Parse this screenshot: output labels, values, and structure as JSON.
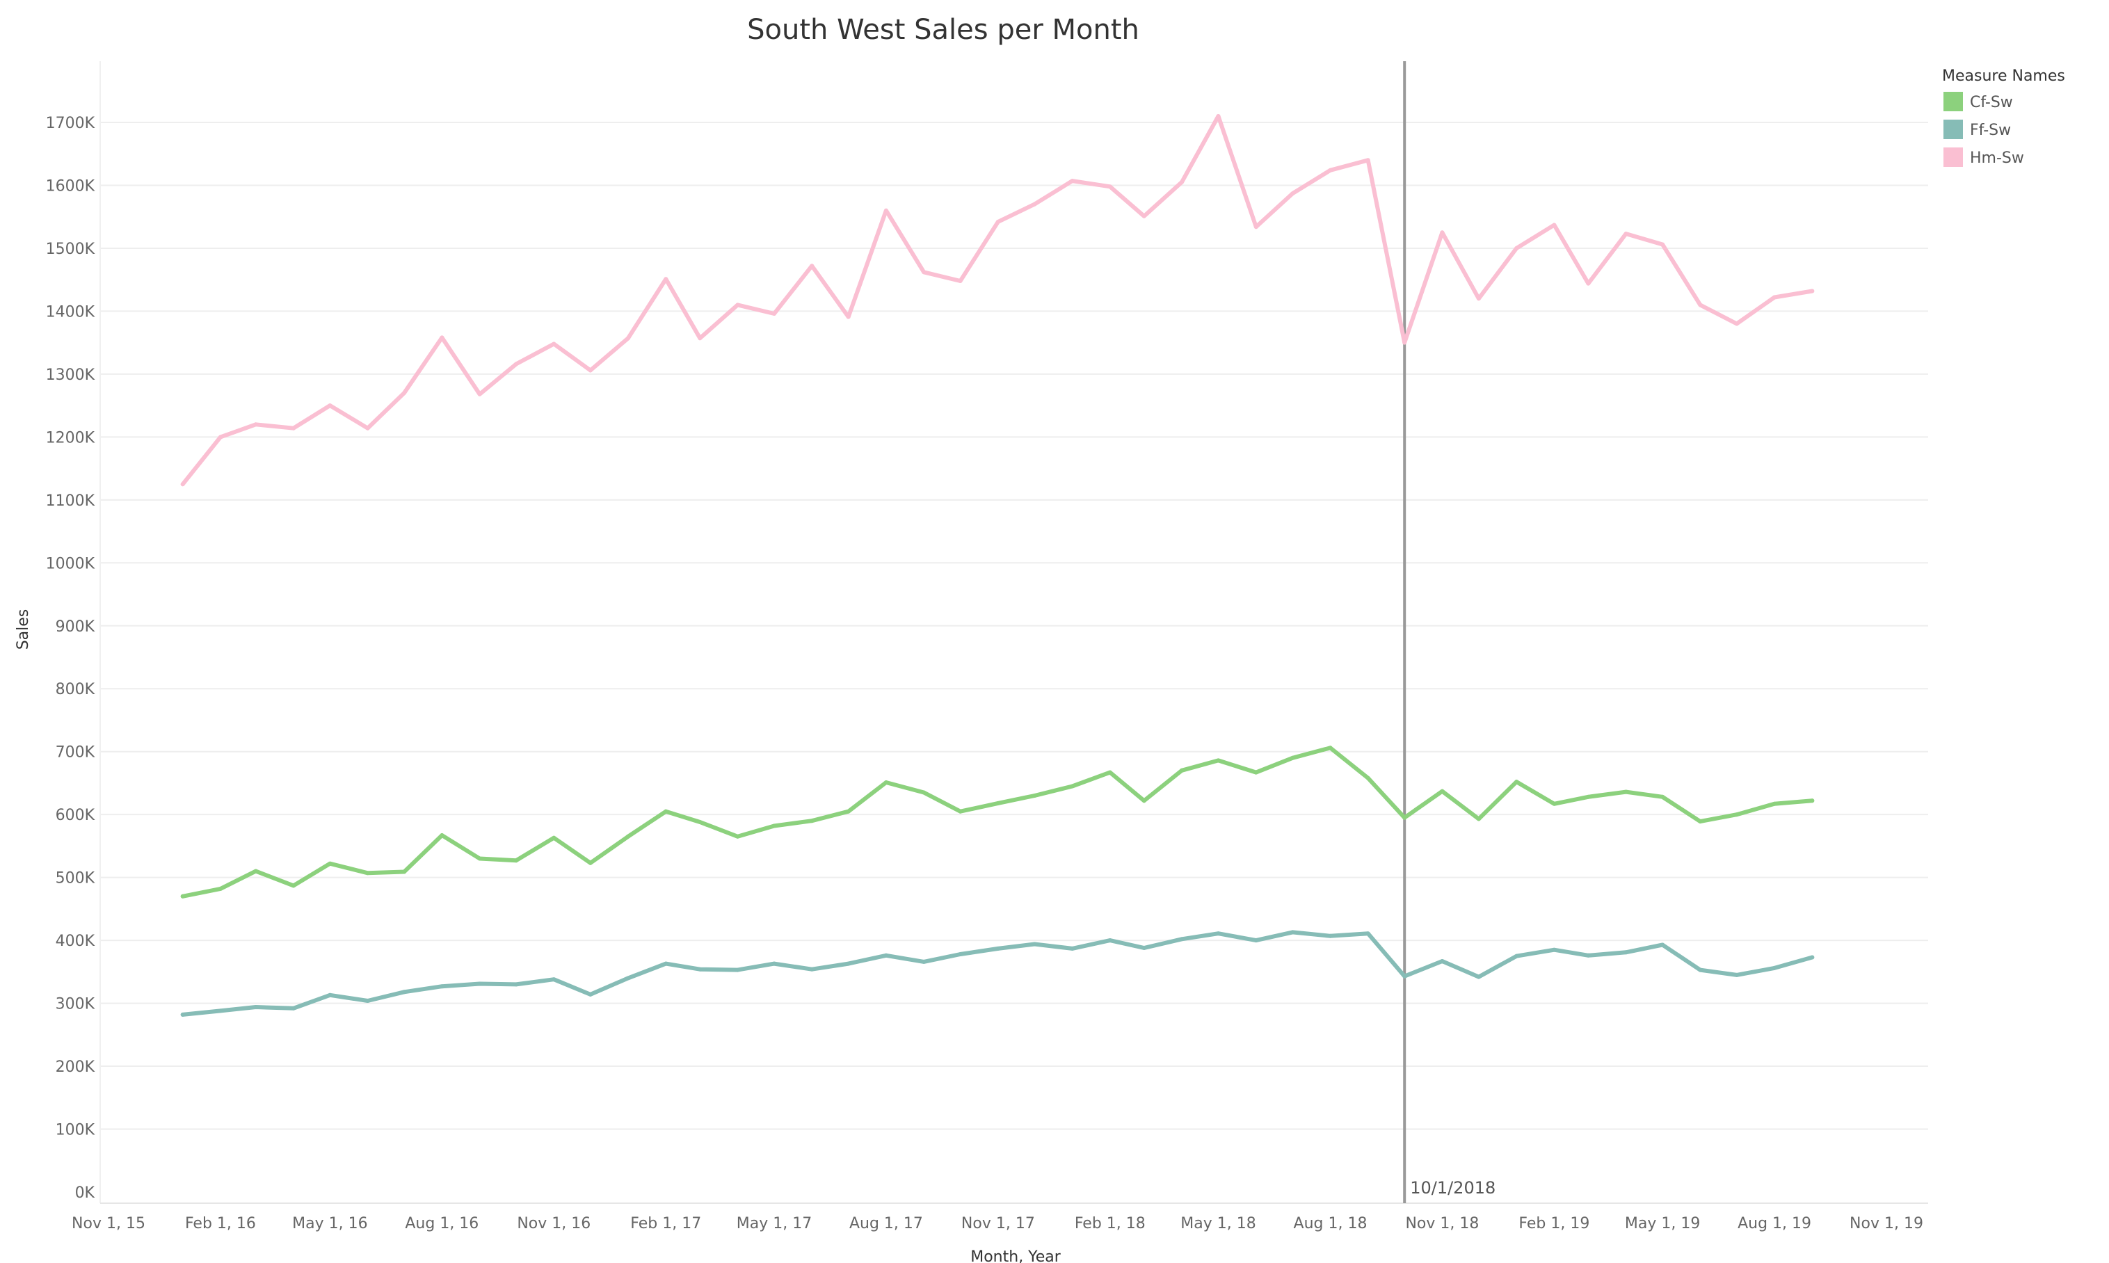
{
  "chart_data": {
    "type": "line",
    "title": "South West Sales per Month",
    "xlabel": "Month, Year",
    "ylabel": "Sales",
    "x_axis_type": "date",
    "xlim": [
      "2015-11-01",
      "2019-11-01"
    ],
    "ylim": [
      0,
      1800000
    ],
    "x_tick_labels": [
      "Nov 1, 15",
      "Feb 1, 16",
      "May 1, 16",
      "Aug 1, 16",
      "Nov 1, 16",
      "Feb 1, 17",
      "May 1, 17",
      "Aug 1, 17",
      "Nov 1, 17",
      "Feb 1, 18",
      "May 1, 18",
      "Aug 1, 18",
      "Nov 1, 18",
      "Feb 1, 19",
      "May 1, 19",
      "Aug 1, 19",
      "Nov 1, 19"
    ],
    "y_ticks": [
      0,
      100000,
      200000,
      300000,
      400000,
      500000,
      600000,
      700000,
      800000,
      900000,
      1000000,
      1100000,
      1200000,
      1300000,
      1400000,
      1500000,
      1600000,
      1700000
    ],
    "y_tick_labels": [
      "0K",
      "100K",
      "200K",
      "300K",
      "400K",
      "500K",
      "600K",
      "700K",
      "800K",
      "900K",
      "1000K",
      "1100K",
      "1200K",
      "1300K",
      "1400K",
      "1500K",
      "1600K",
      "1700K"
    ],
    "grid": "horizontal",
    "legend": {
      "title": "Measure Names",
      "position": "top-right"
    },
    "reference_line": {
      "x": "2018-10-01",
      "label": "10/1/2018",
      "color": "#999999"
    },
    "x": [
      "2016-01-01",
      "2016-02-01",
      "2016-03-01",
      "2016-04-01",
      "2016-05-01",
      "2016-06-01",
      "2016-07-01",
      "2016-08-01",
      "2016-09-01",
      "2016-10-01",
      "2016-11-01",
      "2016-12-01",
      "2017-01-01",
      "2017-02-01",
      "2017-03-01",
      "2017-04-01",
      "2017-05-01",
      "2017-06-01",
      "2017-07-01",
      "2017-08-01",
      "2017-09-01",
      "2017-10-01",
      "2017-11-01",
      "2017-12-01",
      "2018-01-01",
      "2018-02-01",
      "2018-03-01",
      "2018-04-01",
      "2018-05-01",
      "2018-06-01",
      "2018-07-01",
      "2018-08-01",
      "2018-09-01",
      "2018-10-01",
      "2018-11-01",
      "2018-12-01",
      "2019-01-01",
      "2019-02-01",
      "2019-03-01",
      "2019-04-01",
      "2019-05-01",
      "2019-06-01",
      "2019-07-01",
      "2019-08-01",
      "2019-09-01"
    ],
    "series": [
      {
        "name": "Cf-Sw",
        "color": "#8cd17d",
        "values": [
          470000,
          482000,
          510000,
          487000,
          522000,
          507000,
          509000,
          567000,
          530000,
          527000,
          563000,
          523000,
          565000,
          605000,
          588000,
          565000,
          582000,
          590000,
          605000,
          651000,
          635000,
          605000,
          618000,
          630000,
          645000,
          667000,
          622000,
          670000,
          686000,
          667000,
          690000,
          706000,
          658000,
          595000,
          637000,
          593000,
          652000,
          617000,
          628000,
          636000,
          628000,
          589000,
          600000,
          617000,
          622000
        ]
      },
      {
        "name": "Ff-Sw",
        "color": "#86bcb6",
        "values": [
          282000,
          288000,
          294000,
          292000,
          313000,
          304000,
          318000,
          327000,
          331000,
          330000,
          338000,
          314000,
          340000,
          363000,
          354000,
          353000,
          363000,
          354000,
          363000,
          376000,
          366000,
          378000,
          387000,
          394000,
          387000,
          400000,
          388000,
          402000,
          411000,
          400000,
          413000,
          407000,
          411000,
          343000,
          367000,
          342000,
          375000,
          385000,
          376000,
          381000,
          393000,
          353000,
          345000,
          356000,
          373000
        ]
      },
      {
        "name": "Hm-Sw",
        "color": "#fabfd2",
        "values": [
          1125000,
          1200000,
          1220000,
          1214000,
          1250000,
          1214000,
          1270000,
          1358000,
          1268000,
          1316000,
          1348000,
          1306000,
          1357000,
          1451000,
          1357000,
          1410000,
          1396000,
          1472000,
          1391000,
          1560000,
          1462000,
          1448000,
          1542000,
          1570000,
          1607000,
          1598000,
          1551000,
          1605000,
          1710000,
          1534000,
          1587000,
          1624000,
          1640000,
          1350000,
          1525000,
          1420000,
          1500000,
          1537000,
          1444000,
          1523000,
          1506000,
          1410000,
          1380000,
          1422000,
          1432000
        ]
      }
    ]
  }
}
